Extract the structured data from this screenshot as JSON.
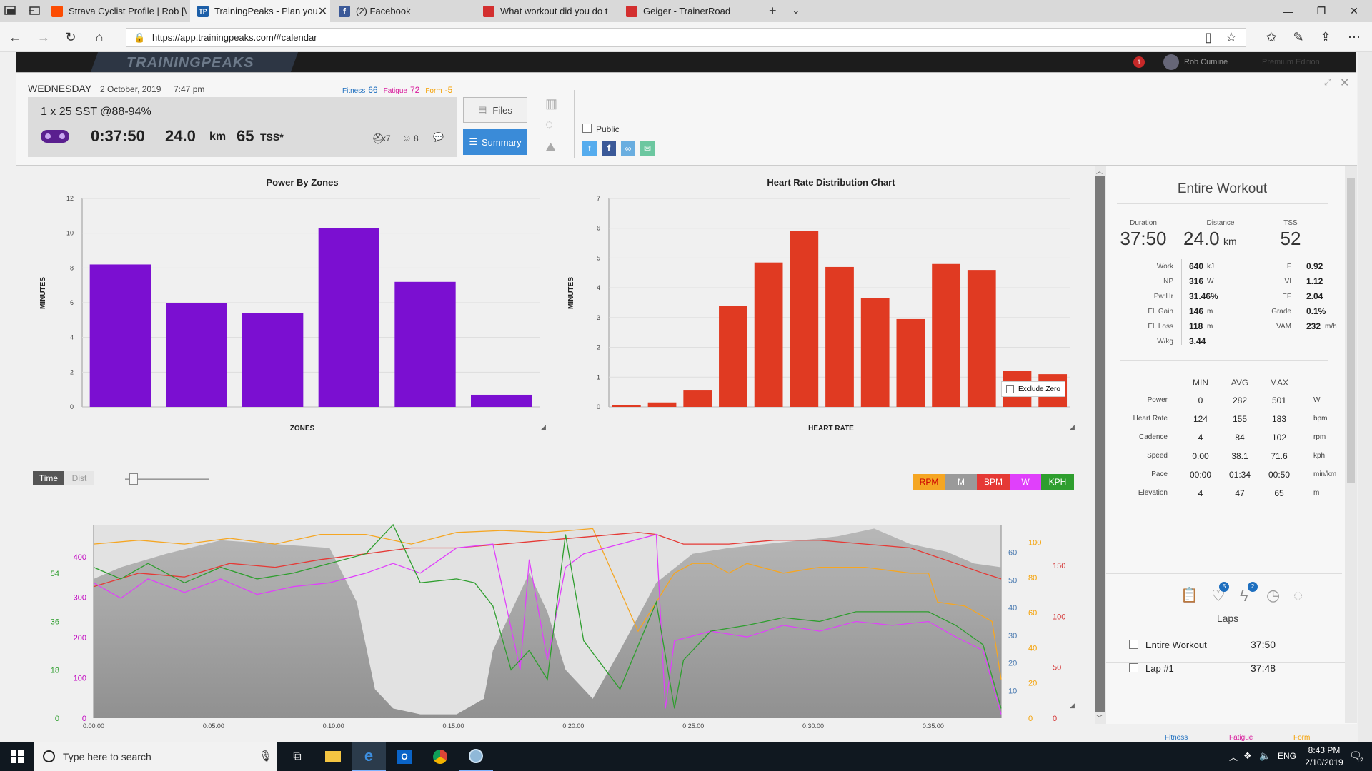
{
  "browser": {
    "tabs": [
      {
        "title": "Strava Cyclist Profile | Rob [\\",
        "icon_color": "#fc4c02",
        "icon": "strava-icon"
      },
      {
        "title": "TrainingPeaks - Plan you",
        "icon_color": "#1d5fa8",
        "icon": "trainingpeaks-icon",
        "active": true
      },
      {
        "title": "(2) Facebook",
        "icon_color": "#3b5998",
        "icon": "facebook-icon"
      },
      {
        "title": "What workout did you do t",
        "icon_color": "#d32f2f",
        "icon": "trainerroad-icon"
      },
      {
        "title": "Geiger - TrainerRoad",
        "icon_color": "#d32f2f",
        "icon": "trainerroad-icon"
      }
    ],
    "url": "https://app.trainingpeaks.com/#calendar"
  },
  "tp_header": {
    "logo": "TRAININGPEAKS",
    "notification_count": "1",
    "user_name": "Rob Cumine",
    "edition": "Premium Edition"
  },
  "workout": {
    "day": "WEDNESDAY",
    "date": "2 October, 2019",
    "time": "7:47 pm",
    "fitness_label": "Fitness",
    "fitness_value": "66",
    "fatigue_label": "Fatigue",
    "fatigue_value": "72",
    "form_label": "Form",
    "form_value": "-5",
    "title": "1 x 25 SST @88-94%",
    "duration": "0:37:50",
    "distance": "24.0",
    "distance_unit": "km",
    "tss": "65",
    "tss_unit": "TSS*",
    "equipment_count": "x7",
    "comments_count": "8",
    "files_label": "Files",
    "summary_label": "Summary",
    "public_label": "Public"
  },
  "power_chart": {
    "title": "Power By Zones",
    "xlabel": "ZONES",
    "ylabel": "MINUTES"
  },
  "hr_chart": {
    "title": "Heart Rate Distribution Chart",
    "xlabel": "HEART RATE",
    "ylabel": "MINUTES",
    "exclude_zero_label": "Exclude Zero"
  },
  "chart_data": [
    {
      "type": "bar",
      "title": "Power By Zones",
      "xlabel": "ZONES",
      "ylabel": "MINUTES",
      "ylim": [
        0,
        12
      ],
      "yticks": [
        0,
        2,
        4,
        6,
        8,
        10,
        12
      ],
      "values": [
        8.2,
        6.0,
        5.4,
        10.3,
        7.2,
        0.7
      ],
      "color": "#7b0fd1"
    },
    {
      "type": "bar",
      "title": "Heart Rate Distribution Chart",
      "xlabel": "HEART RATE",
      "ylabel": "MINUTES",
      "ylim": [
        0,
        7
      ],
      "yticks": [
        0,
        1,
        2,
        3,
        4,
        5,
        6,
        7
      ],
      "values": [
        0.05,
        0.15,
        0.55,
        3.4,
        4.85,
        5.9,
        4.7,
        3.65,
        2.95,
        4.8,
        4.6,
        1.2,
        1.1
      ],
      "color": "#e03a22"
    },
    {
      "type": "line",
      "title": "",
      "xlabel": "",
      "x_ticks": [
        "0:00:00",
        "0:05:00",
        "0:10:00",
        "0:15:00",
        "0:20:00",
        "0:25:00",
        "0:30:00",
        "0:35:00"
      ],
      "left_axis_power": [
        0,
        100,
        200,
        300,
        400
      ],
      "left_axis_cadence": [
        0,
        18,
        36,
        54
      ],
      "right_axis_speed": [
        10,
        20,
        30,
        40,
        50,
        60
      ],
      "right_axis_elevation": [
        0,
        20,
        40,
        60,
        80,
        100
      ],
      "right_axis_hr": [
        0,
        50,
        100,
        150
      ],
      "series": [
        {
          "name": "RPM",
          "color": "#f5a623"
        },
        {
          "name": "M",
          "color": "#9a9a9a"
        },
        {
          "name": "BPM",
          "color": "#e53935"
        },
        {
          "name": "W",
          "color": "#e040fb"
        },
        {
          "name": "KPH",
          "color": "#2e9e2e"
        }
      ]
    }
  ],
  "time_toggle": {
    "time": "Time",
    "dist": "Dist"
  },
  "entire_workout": {
    "title": "Entire Workout",
    "duration_label": "Duration",
    "duration": "37:50",
    "distance_label": "Distance",
    "distance": "24.0",
    "distance_unit": "km",
    "tss_label": "TSS",
    "tss": "52",
    "left_stats": [
      {
        "label": "Work",
        "value": "640",
        "unit": "kJ"
      },
      {
        "label": "NP",
        "value": "316",
        "unit": "W"
      },
      {
        "label": "Pw:Hr",
        "value": "31.46%",
        "unit": ""
      },
      {
        "label": "El. Gain",
        "value": "146",
        "unit": "m"
      },
      {
        "label": "El. Loss",
        "value": "118",
        "unit": "m"
      },
      {
        "label": "W/kg",
        "value": "3.44",
        "unit": ""
      }
    ],
    "right_stats": [
      {
        "label": "IF",
        "value": "0.92",
        "unit": ""
      },
      {
        "label": "VI",
        "value": "1.12",
        "unit": ""
      },
      {
        "label": "EF",
        "value": "2.04",
        "unit": ""
      },
      {
        "label": "Grade",
        "value": "0.1%",
        "unit": ""
      },
      {
        "label": "VAM",
        "value": "232",
        "unit": "m/h"
      }
    ],
    "table_headers": [
      "MIN",
      "AVG",
      "MAX"
    ],
    "table_rows": [
      {
        "label": "Power",
        "min": "0",
        "avg": "282",
        "max": "501",
        "unit": "W"
      },
      {
        "label": "Heart Rate",
        "min": "124",
        "avg": "155",
        "max": "183",
        "unit": "bpm"
      },
      {
        "label": "Cadence",
        "min": "4",
        "avg": "84",
        "max": "102",
        "unit": "rpm"
      },
      {
        "label": "Speed",
        "min": "0.00",
        "avg": "38.1",
        "max": "71.6",
        "unit": "kph"
      },
      {
        "label": "Pace",
        "min": "00:00",
        "avg": "01:34",
        "max": "00:50",
        "unit": "min/km"
      },
      {
        "label": "Elevation",
        "min": "4",
        "avg": "47",
        "max": "65",
        "unit": "m"
      }
    ],
    "badge_heart": "5",
    "badge_bolt": "2",
    "laps_title": "Laps",
    "laps": [
      {
        "name": "Entire Workout",
        "time": "37:50"
      },
      {
        "name": "Lap #1",
        "time": "37:48"
      }
    ]
  },
  "bottom_labels": {
    "fitness": "Fitness",
    "fatigue": "Fatigue",
    "form": "Form"
  },
  "taskbar": {
    "search_placeholder": "Type here to search",
    "lang": "ENG",
    "time": "8:43 PM",
    "date": "2/10/2019",
    "notif_count": "12"
  }
}
